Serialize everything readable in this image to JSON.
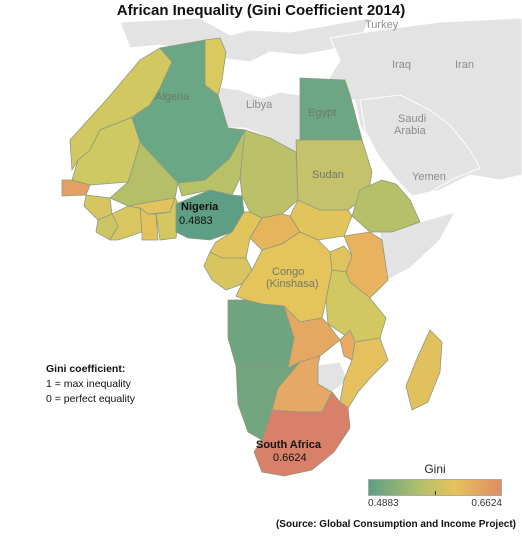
{
  "title": "African Inequality (Gini Coefficient 2014)",
  "source": "(Source: Global Consumption and Income Project)",
  "legend": {
    "heading": "Gini coefficient:",
    "line1": "1 = max inequality",
    "line2": "0 = perfect equality"
  },
  "scale": {
    "title": "Gini",
    "min_label": "0.4883",
    "max_label": "0.6624",
    "min": 0.4883,
    "max": 0.6624,
    "colors": [
      "#5e9e84",
      "#b5c06a",
      "#e7c25a",
      "#dd8e62"
    ]
  },
  "callouts": {
    "nigeria": {
      "name": "Nigeria",
      "value": "0.4883"
    },
    "south_africa": {
      "name": "South Africa",
      "value": "0.6624"
    }
  },
  "place_labels": {
    "turkey": "Turkey",
    "iraq": "Iraq",
    "iran": "Iran",
    "saudi_line1": "Saudi",
    "saudi_line2": "Arabia",
    "yemen": "Yemen",
    "libya": "Libya",
    "algeria": "Algeria",
    "egypt": "Egypt",
    "sudan": "Sudan",
    "congo_line1": "Congo",
    "congo_line2": "(Kinshasa)"
  },
  "colors": {
    "no_data": "#e2e2e2",
    "sea": "#ffffff",
    "border": "#ffffff"
  },
  "chart_data": {
    "type": "choropleth",
    "title": "African Inequality (Gini Coefficient 2014)",
    "measure": "Gini",
    "range": [
      0.4883,
      0.6624
    ],
    "regions": [
      {
        "name": "Nigeria",
        "value": 0.4883
      },
      {
        "name": "South Africa",
        "value": 0.6624
      }
    ]
  }
}
